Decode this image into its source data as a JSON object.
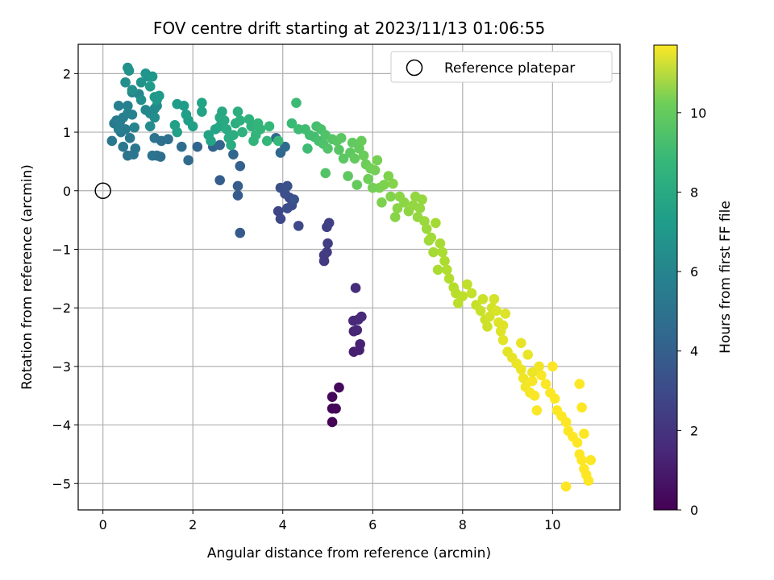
{
  "chart_data": {
    "type": "scatter",
    "title": "FOV centre drift starting at 2023/11/13 01:06:55",
    "xlabel": "Angular distance from reference (arcmin)",
    "ylabel": "Rotation from reference (arcmin)",
    "xlim": [
      -0.55,
      11.5
    ],
    "ylim": [
      -5.45,
      2.5
    ],
    "xticks": [
      0,
      2,
      4,
      6,
      8,
      10
    ],
    "yticks": [
      -5,
      -4,
      -3,
      -2,
      -1,
      0,
      1,
      2
    ],
    "grid": true,
    "legend": {
      "placement": "top-right",
      "entries": [
        "Reference platepar"
      ]
    },
    "reference_point": {
      "x": 0,
      "y": 0
    },
    "colorbar": {
      "label": "Hours from first FF file",
      "colormap": "viridis",
      "range": [
        0,
        11.7
      ],
      "ticks": [
        0,
        2,
        4,
        6,
        8,
        10
      ]
    },
    "series": [
      {
        "name": "drift",
        "points": [
          [
            5.1,
            -3.95,
            0.05
          ],
          [
            5.1,
            -3.72,
            0.1
          ],
          [
            5.18,
            -3.72,
            0.15
          ],
          [
            5.1,
            -3.52,
            0.2
          ],
          [
            5.25,
            -3.36,
            0.25
          ],
          [
            5.58,
            -2.75,
            1.0
          ],
          [
            5.7,
            -2.72,
            1.05
          ],
          [
            5.72,
            -2.62,
            1.1
          ],
          [
            5.58,
            -2.4,
            1.2
          ],
          [
            5.65,
            -2.38,
            1.25
          ],
          [
            5.57,
            -2.22,
            1.3
          ],
          [
            5.68,
            -2.2,
            1.35
          ],
          [
            5.75,
            -2.15,
            1.4
          ],
          [
            5.62,
            -1.66,
            1.5
          ],
          [
            4.92,
            -1.2,
            2.0
          ],
          [
            4.92,
            -1.1,
            2.05
          ],
          [
            4.98,
            -1.05,
            2.1
          ],
          [
            5.0,
            -0.9,
            2.15
          ],
          [
            4.98,
            -0.62,
            2.2
          ],
          [
            5.03,
            -0.55,
            2.25
          ],
          [
            3.9,
            -0.35,
            2.5
          ],
          [
            3.95,
            -0.48,
            2.55
          ],
          [
            4.35,
            -0.6,
            2.6
          ],
          [
            4.15,
            -0.12,
            2.7
          ],
          [
            4.2,
            -0.25,
            2.75
          ],
          [
            4.1,
            -0.3,
            2.8
          ],
          [
            4.05,
            -0.05,
            2.85
          ],
          [
            3.95,
            0.05,
            2.9
          ],
          [
            4.1,
            0.08,
            2.95
          ],
          [
            4.25,
            -0.15,
            3.0
          ],
          [
            3.05,
            -0.72,
            3.3
          ],
          [
            3.0,
            -0.08,
            3.4
          ],
          [
            3.0,
            0.08,
            3.45
          ],
          [
            2.6,
            0.18,
            3.5
          ],
          [
            3.05,
            0.42,
            3.6
          ],
          [
            2.45,
            0.75,
            3.7
          ],
          [
            2.1,
            0.75,
            3.75
          ],
          [
            2.6,
            0.78,
            3.8
          ],
          [
            2.9,
            0.62,
            3.85
          ],
          [
            3.95,
            0.65,
            3.9
          ],
          [
            3.85,
            0.9,
            3.95
          ],
          [
            4.05,
            0.75,
            4.0
          ],
          [
            1.9,
            0.52,
            4.1
          ],
          [
            1.75,
            0.75,
            4.15
          ],
          [
            1.2,
            0.6,
            4.2
          ],
          [
            1.28,
            0.58,
            4.25
          ],
          [
            1.3,
            0.85,
            4.3
          ],
          [
            1.45,
            0.88,
            4.35
          ],
          [
            1.15,
            0.9,
            4.4
          ],
          [
            1.1,
            0.6,
            4.45
          ],
          [
            0.55,
            0.6,
            4.5
          ],
          [
            0.68,
            0.62,
            4.55
          ],
          [
            0.72,
            0.72,
            4.6
          ],
          [
            0.45,
            0.75,
            4.65
          ],
          [
            0.2,
            0.85,
            4.7
          ],
          [
            0.25,
            1.15,
            4.75
          ],
          [
            0.3,
            1.2,
            4.8
          ],
          [
            0.4,
            1.0,
            4.85
          ],
          [
            0.5,
            1.05,
            4.9
          ],
          [
            0.38,
            1.18,
            5.0
          ],
          [
            0.45,
            1.25,
            5.05
          ],
          [
            0.35,
            1.45,
            5.1
          ],
          [
            0.55,
            1.45,
            5.15
          ],
          [
            0.55,
            1.32,
            5.2
          ],
          [
            0.65,
            1.3,
            5.25
          ],
          [
            0.7,
            1.08,
            5.3
          ],
          [
            0.65,
            1.68,
            5.35
          ],
          [
            0.8,
            1.65,
            5.4
          ],
          [
            0.95,
            1.38,
            5.45
          ],
          [
            1.05,
            1.32,
            5.5
          ],
          [
            1.15,
            1.4,
            5.55
          ],
          [
            1.2,
            1.45,
            5.6
          ],
          [
            1.05,
            1.1,
            5.65
          ],
          [
            1.15,
            1.25,
            5.7
          ],
          [
            0.5,
            1.85,
            5.8
          ],
          [
            0.65,
            1.72,
            5.85
          ],
          [
            0.55,
            2.1,
            5.9
          ],
          [
            0.58,
            2.05,
            5.95
          ],
          [
            0.85,
            1.85,
            6.0
          ],
          [
            1.0,
            1.95,
            6.05
          ],
          [
            0.95,
            2.0,
            6.1
          ],
          [
            1.1,
            1.95,
            6.15
          ],
          [
            1.2,
            1.55,
            6.2
          ],
          [
            1.15,
            1.6,
            6.25
          ],
          [
            1.25,
            1.62,
            6.3
          ],
          [
            1.05,
            1.78,
            6.35
          ],
          [
            1.65,
            1.48,
            6.4
          ],
          [
            1.8,
            1.45,
            6.45
          ],
          [
            1.85,
            1.3,
            6.5
          ],
          [
            1.9,
            1.2,
            6.55
          ],
          [
            1.6,
            1.12,
            6.6
          ],
          [
            1.65,
            1.0,
            6.65
          ],
          [
            2.2,
            1.35,
            6.7
          ],
          [
            2.2,
            1.5,
            6.75
          ],
          [
            2.35,
            0.95,
            6.8
          ],
          [
            2.5,
            1.05,
            6.85
          ],
          [
            2.6,
            1.1,
            6.9
          ],
          [
            2.6,
            1.25,
            6.95
          ],
          [
            2.65,
            1.35,
            7.0
          ],
          [
            2.7,
            1.2,
            7.05
          ],
          [
            2.75,
            1.05,
            7.1
          ],
          [
            2.8,
            0.9,
            7.15
          ],
          [
            2.85,
            0.78,
            7.2
          ],
          [
            2.9,
            0.95,
            7.25
          ],
          [
            2.95,
            1.15,
            7.3
          ],
          [
            3.0,
            1.35,
            7.35
          ],
          [
            3.05,
            1.2,
            7.4
          ],
          [
            3.1,
            1.0,
            7.45
          ],
          [
            3.25,
            1.22,
            7.5
          ],
          [
            3.3,
            1.1,
            7.55
          ],
          [
            3.35,
            0.85,
            7.6
          ],
          [
            3.45,
            1.15,
            7.65
          ],
          [
            3.5,
            1.05,
            7.7
          ],
          [
            3.65,
            0.85,
            7.75
          ],
          [
            3.7,
            1.1,
            7.8
          ],
          [
            3.9,
            0.85,
            7.85
          ],
          [
            4.2,
            1.15,
            7.9
          ],
          [
            4.3,
            1.5,
            7.95
          ],
          [
            4.35,
            1.05,
            8.0
          ],
          [
            4.5,
            1.05,
            8.05
          ],
          [
            4.6,
            0.95,
            8.1
          ],
          [
            4.7,
            0.92,
            8.15
          ],
          [
            4.75,
            1.1,
            8.2
          ],
          [
            4.8,
            0.85,
            8.25
          ],
          [
            4.85,
            1.05,
            8.3
          ],
          [
            4.9,
            0.8,
            8.35
          ],
          [
            4.95,
            0.95,
            8.4
          ],
          [
            5.0,
            0.72,
            8.45
          ],
          [
            4.95,
            0.3,
            8.5
          ],
          [
            5.1,
            0.88,
            8.55
          ],
          [
            5.2,
            0.85,
            8.6
          ],
          [
            5.3,
            0.9,
            8.65
          ],
          [
            5.35,
            0.55,
            8.7
          ],
          [
            5.5,
            0.65,
            8.75
          ],
          [
            5.55,
            0.82,
            8.8
          ],
          [
            5.6,
            0.55,
            8.85
          ],
          [
            5.7,
            0.72,
            8.9
          ],
          [
            5.75,
            0.85,
            8.95
          ],
          [
            5.8,
            0.6,
            9.0
          ],
          [
            5.85,
            0.45,
            9.05
          ],
          [
            5.9,
            0.2,
            9.1
          ],
          [
            5.95,
            0.38,
            9.15
          ],
          [
            6.05,
            0.35,
            9.2
          ],
          [
            6.1,
            0.52,
            9.25
          ],
          [
            6.15,
            0.05,
            9.3
          ],
          [
            6.2,
            -0.2,
            9.35
          ],
          [
            6.35,
            0.25,
            9.4
          ],
          [
            6.4,
            -0.1,
            9.45
          ],
          [
            6.45,
            0.12,
            9.5
          ],
          [
            6.5,
            -0.45,
            9.55
          ],
          [
            6.6,
            -0.1,
            9.6
          ],
          [
            6.7,
            -0.2,
            9.65
          ],
          [
            6.8,
            -0.35,
            9.7
          ],
          [
            6.9,
            -0.25,
            9.75
          ],
          [
            7.0,
            -0.45,
            9.8
          ],
          [
            7.1,
            -0.15,
            9.85
          ],
          [
            7.15,
            -0.52,
            9.9
          ],
          [
            7.2,
            -0.65,
            9.95
          ],
          [
            7.25,
            -0.85,
            10.0
          ],
          [
            7.3,
            -0.8,
            10.05
          ],
          [
            7.4,
            -0.55,
            10.1
          ],
          [
            7.5,
            -0.9,
            10.15
          ],
          [
            7.55,
            -1.05,
            10.2
          ],
          [
            7.6,
            -1.2,
            10.25
          ],
          [
            7.65,
            -1.35,
            10.3
          ],
          [
            7.7,
            -1.5,
            10.35
          ],
          [
            7.8,
            -1.65,
            10.4
          ],
          [
            7.85,
            -1.75,
            10.45
          ],
          [
            7.9,
            -1.92,
            10.5
          ],
          [
            8.0,
            -1.8,
            10.55
          ],
          [
            8.1,
            -1.6,
            10.6
          ],
          [
            8.2,
            -1.75,
            10.65
          ],
          [
            8.3,
            -1.95,
            10.7
          ],
          [
            8.4,
            -2.05,
            10.75
          ],
          [
            8.5,
            -2.2,
            10.8
          ],
          [
            8.55,
            -2.32,
            10.85
          ],
          [
            8.6,
            -2.15,
            10.9
          ],
          [
            8.65,
            -2.0,
            10.95
          ],
          [
            8.7,
            -1.85,
            11.0
          ],
          [
            8.75,
            -2.05,
            11.05
          ],
          [
            8.8,
            -2.25,
            11.1
          ],
          [
            8.85,
            -2.4,
            11.15
          ],
          [
            8.9,
            -2.55,
            11.2
          ],
          [
            9.0,
            -2.75,
            11.25
          ],
          [
            9.1,
            -2.85,
            11.3
          ],
          [
            9.2,
            -2.95,
            11.35
          ],
          [
            9.3,
            -3.05,
            11.4
          ],
          [
            9.35,
            -3.2,
            11.45
          ],
          [
            9.4,
            -3.35,
            11.5
          ],
          [
            9.5,
            -3.45,
            11.55
          ],
          [
            9.55,
            -3.25,
            11.6
          ],
          [
            9.6,
            -3.5,
            11.62
          ],
          [
            9.65,
            -3.75,
            11.64
          ],
          [
            9.75,
            -3.15,
            11.65
          ],
          [
            9.85,
            -3.3,
            11.66
          ],
          [
            9.95,
            -3.45,
            11.67
          ],
          [
            10.05,
            -3.55,
            11.68
          ],
          [
            10.1,
            -3.75,
            11.68
          ],
          [
            10.2,
            -3.85,
            11.69
          ],
          [
            10.3,
            -3.95,
            11.69
          ],
          [
            10.35,
            -4.1,
            11.7
          ],
          [
            10.45,
            -4.2,
            11.7
          ],
          [
            10.55,
            -4.3,
            11.7
          ],
          [
            10.6,
            -4.5,
            11.7
          ],
          [
            10.65,
            -4.6,
            11.7
          ],
          [
            10.7,
            -4.75,
            11.7
          ],
          [
            10.75,
            -4.85,
            11.7
          ],
          [
            10.8,
            -4.95,
            11.7
          ],
          [
            10.85,
            -4.6,
            11.7
          ],
          [
            10.7,
            -4.15,
            11.7
          ],
          [
            10.65,
            -3.7,
            11.7
          ],
          [
            10.6,
            -3.3,
            11.7
          ],
          [
            10.3,
            -5.05,
            11.7
          ],
          [
            10.0,
            -3.0,
            11.7
          ],
          [
            9.3,
            -2.6,
            11.3
          ],
          [
            9.45,
            -2.8,
            11.35
          ],
          [
            9.55,
            -3.1,
            11.4
          ],
          [
            9.7,
            -3.0,
            11.45
          ],
          [
            8.9,
            -2.3,
            11.15
          ],
          [
            8.95,
            -2.1,
            11.1
          ],
          [
            8.45,
            -1.85,
            10.8
          ],
          [
            7.45,
            -1.35,
            10.2
          ],
          [
            7.35,
            -1.05,
            10.1
          ],
          [
            7.05,
            -0.3,
            9.8
          ],
          [
            6.95,
            -0.1,
            9.75
          ],
          [
            6.55,
            -0.3,
            9.6
          ],
          [
            6.25,
            0.1,
            9.35
          ],
          [
            6.0,
            0.05,
            9.2
          ],
          [
            5.65,
            0.1,
            8.9
          ],
          [
            5.45,
            0.25,
            8.75
          ],
          [
            5.25,
            0.7,
            8.6
          ],
          [
            4.55,
            0.72,
            8.05
          ],
          [
            3.4,
            0.95,
            7.65
          ],
          [
            2.4,
            0.85,
            6.8
          ],
          [
            2.0,
            1.1,
            6.6
          ],
          [
            0.85,
            1.55,
            5.8
          ],
          [
            0.35,
            1.05,
            4.95
          ],
          [
            0.6,
            0.9,
            4.7
          ]
        ]
      }
    ]
  }
}
